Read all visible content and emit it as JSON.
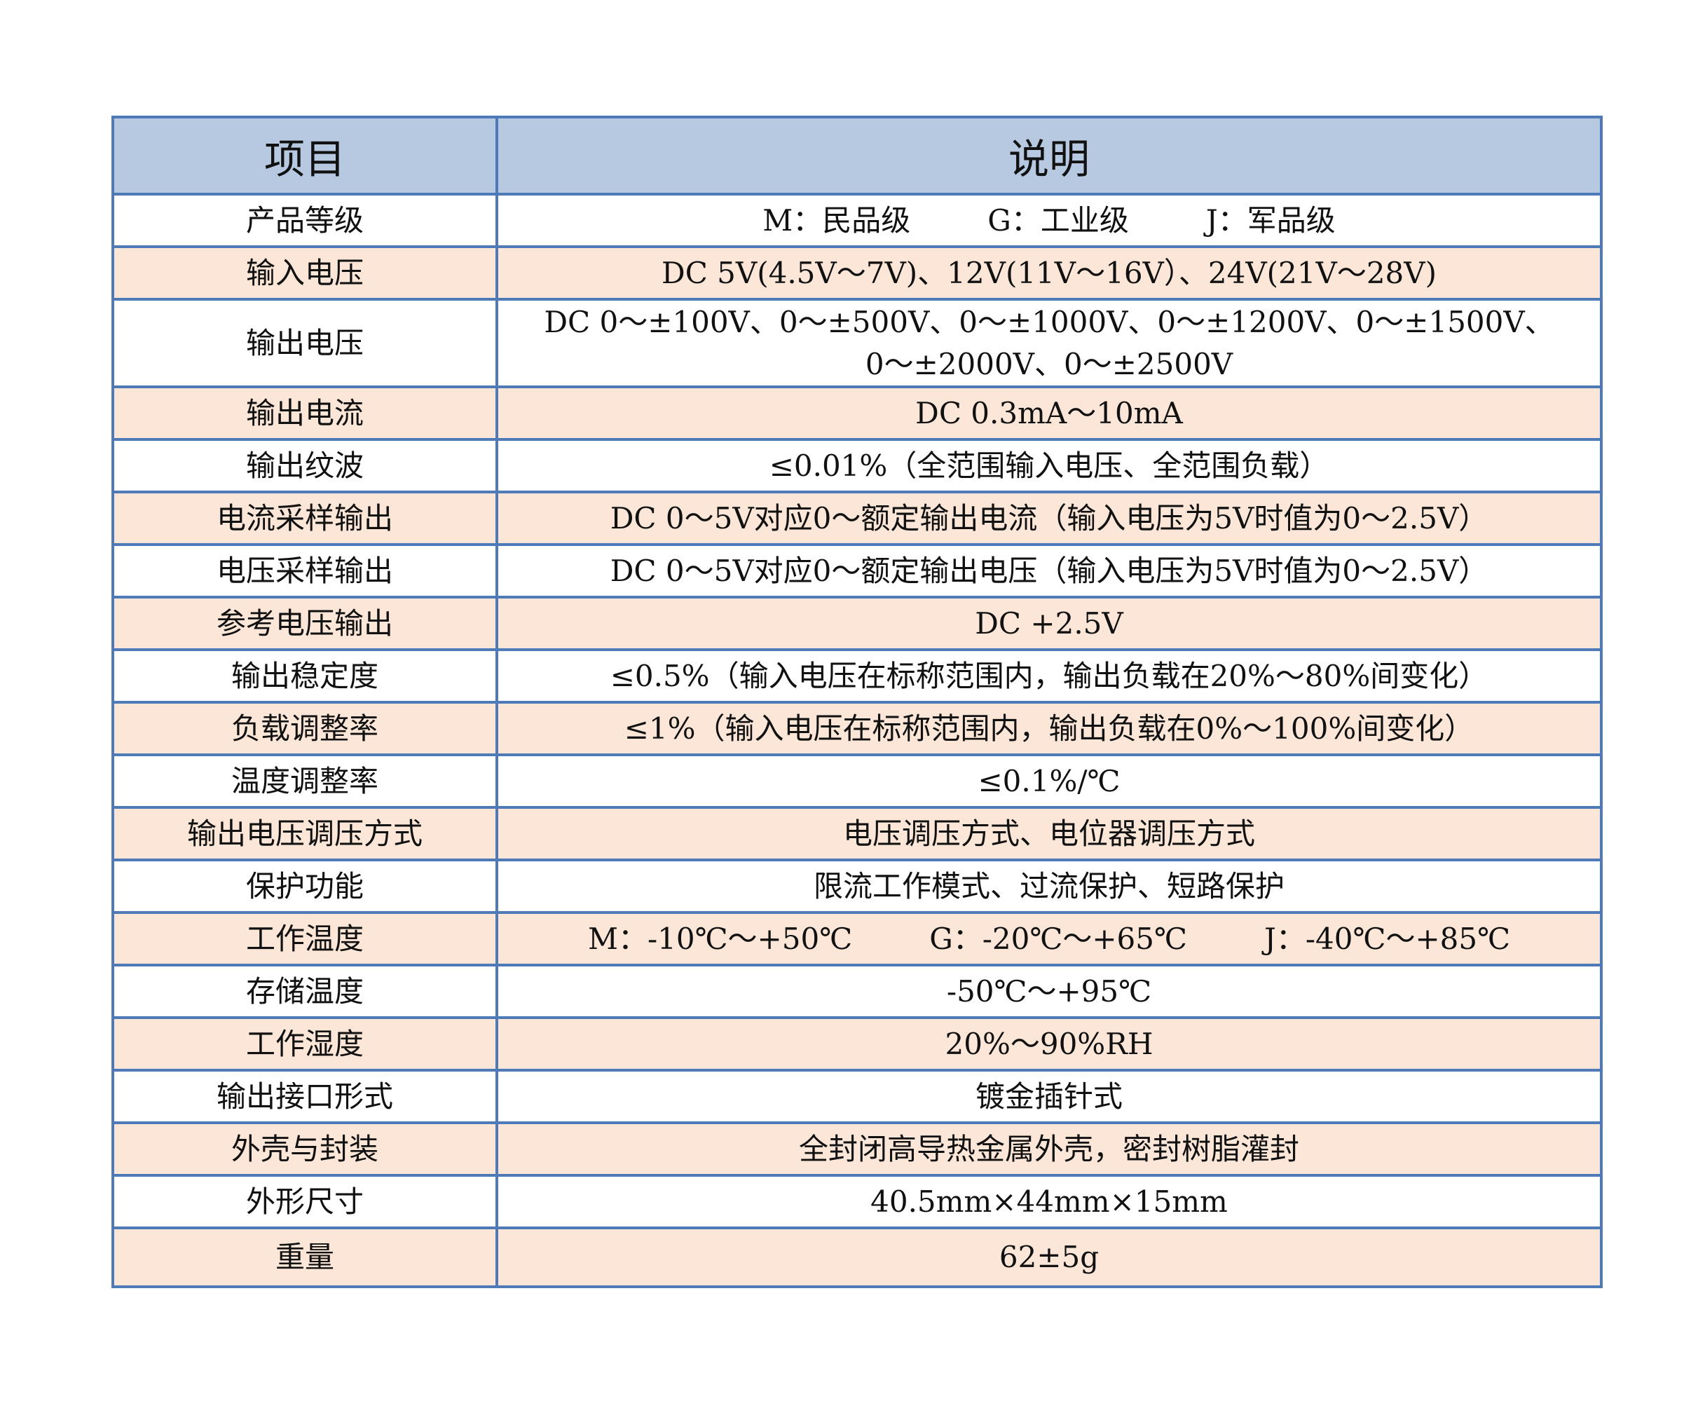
{
  "header": {
    "item": "项目",
    "desc": "说明"
  },
  "colors": {
    "border": "#4f7ab8",
    "header_bg": "#b7c9e0",
    "alt_row_bg": "#fbe6d8"
  },
  "rows": [
    {
      "item": "产品等级",
      "parts": [
        "M：民品级",
        "G：工业级",
        "J：军品级"
      ]
    },
    {
      "item": "输入电压",
      "desc": "DC 5V(4.5V～7V)、12V(11V～16V）、24V(21V～28V)"
    },
    {
      "item": "输出电压",
      "desc": "DC 0～±100V、0～±500V、0～±1000V、0～±1200V、0～±1500V、",
      "desc2": "0～±2000V、0～±2500V"
    },
    {
      "item": "输出电流",
      "desc": "DC 0.3mA～10mA"
    },
    {
      "item": "输出纹波",
      "desc": "≤0.01%（全范围输入电压、全范围负载）"
    },
    {
      "item": "电流采样输出",
      "desc": "DC 0～5V对应0～额定输出电流（输入电压为5V时值为0～2.5V）"
    },
    {
      "item": "电压采样输出",
      "desc": "DC 0～5V对应0～额定输出电压（输入电压为5V时值为0～2.5V）"
    },
    {
      "item": "参考电压输出",
      "desc": "DC +2.5V"
    },
    {
      "item": "输出稳定度",
      "desc": "≤0.5%（输入电压在标称范围内，输出负载在20%～80%间变化）"
    },
    {
      "item": "负载调整率",
      "desc": "≤1%（输入电压在标称范围内，输出负载在0%～100%间变化）"
    },
    {
      "item": "温度调整率",
      "desc": "≤0.1%/℃"
    },
    {
      "item": "输出电压调压方式",
      "desc": "电压调压方式、电位器调压方式"
    },
    {
      "item": "保护功能",
      "desc": "限流工作模式、过流保护、短路保护"
    },
    {
      "item": "工作温度",
      "parts": [
        "M：-10℃～+50℃",
        "G：-20℃～+65℃",
        "J：-40℃～+85℃"
      ]
    },
    {
      "item": "存储温度",
      "desc": "-50℃～+95℃"
    },
    {
      "item": "工作湿度",
      "desc": "20%～90%RH"
    },
    {
      "item": "输出接口形式",
      "desc": "镀金插针式"
    },
    {
      "item": "外壳与封装",
      "desc": "全封闭高导热金属外壳，密封树脂灌封"
    },
    {
      "item": "外形尺寸",
      "desc": "40.5mm×44mm×15mm"
    },
    {
      "item": "重量",
      "desc": "62±5g"
    }
  ]
}
